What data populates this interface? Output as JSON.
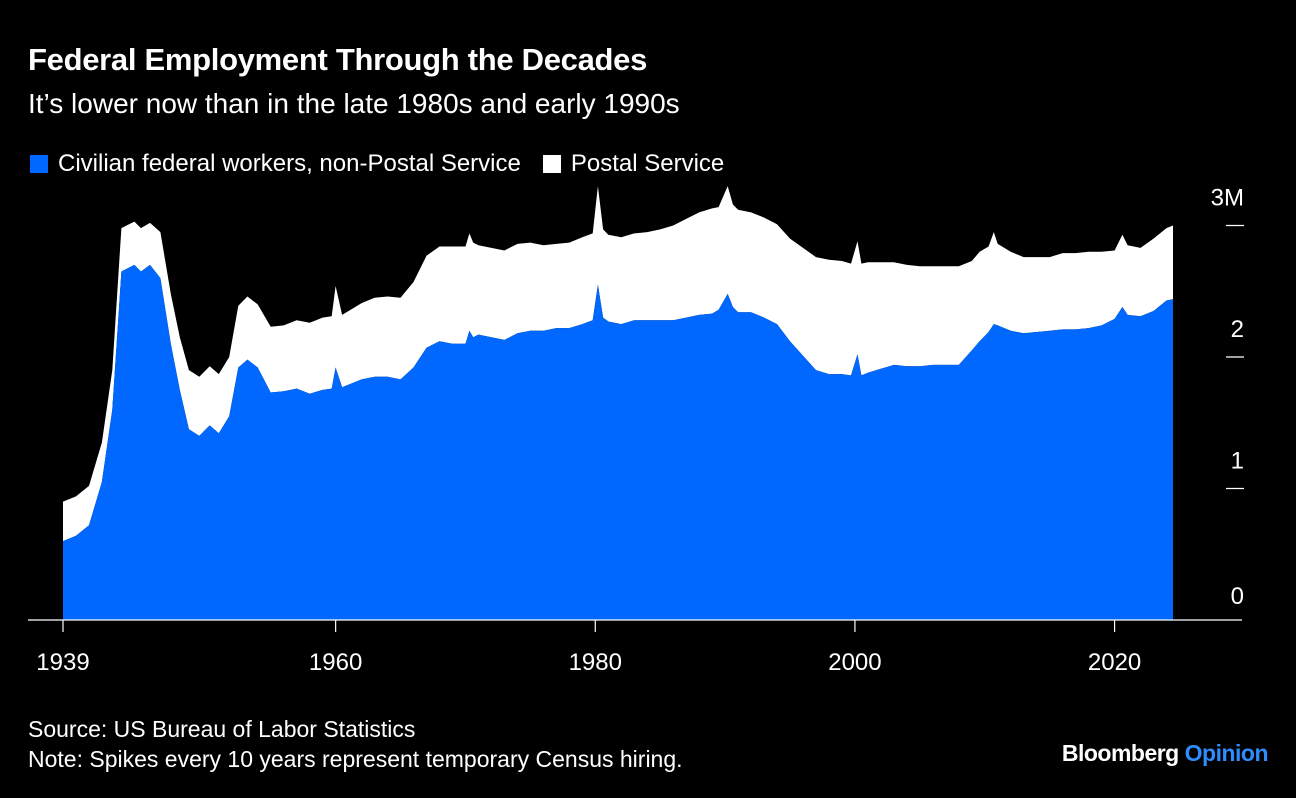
{
  "header": {
    "title": "Federal Employment Through the Decades",
    "subtitle": "It’s lower now than in the late 1980s and early 1990s"
  },
  "legend": {
    "items": [
      {
        "label": "Civilian federal workers, non-Postal Service",
        "color": "#0068ff"
      },
      {
        "label": "Postal Service",
        "color": "#ffffff"
      }
    ]
  },
  "footer": {
    "source": "Source: US Bureau of Labor Statistics",
    "note": "Note: Spikes every 10 years represent temporary Census hiring."
  },
  "brand": {
    "name": "Bloomberg",
    "section": "Opinion",
    "section_color": "#2f8cff"
  },
  "chart_data": {
    "type": "area",
    "stacked": true,
    "title": "Federal Employment Through the Decades",
    "xlabel": "",
    "ylabel": "",
    "xlim": [
      1939,
      2029
    ],
    "ylim": [
      0,
      3.3
    ],
    "x_ticks": [
      {
        "value": 1939,
        "label": "1939"
      },
      {
        "value": 1960,
        "label": "1960"
      },
      {
        "value": 1980,
        "label": "1980"
      },
      {
        "value": 2000,
        "label": "2000"
      },
      {
        "value": 2020,
        "label": "2020"
      }
    ],
    "y_ticks": [
      {
        "value": 0,
        "label": "0"
      },
      {
        "value": 1,
        "label": "1"
      },
      {
        "value": 2,
        "label": "2"
      },
      {
        "value": 3,
        "label": "3M"
      }
    ],
    "x": [
      1939,
      1940,
      1941,
      1942,
      1942.8,
      1943.5,
      1944.5,
      1945,
      1945.7,
      1946.5,
      1947.3,
      1948,
      1948.7,
      1949.5,
      1950.3,
      1951,
      1951.8,
      1952.5,
      1953.2,
      1954,
      1955,
      1956,
      1957,
      1958,
      1959,
      1959.7,
      1960,
      1960.5,
      1961,
      1962,
      1963,
      1964,
      1965,
      1966,
      1967,
      1968,
      1969,
      1970,
      1970.3,
      1970.6,
      1971,
      1972,
      1973,
      1974,
      1975,
      1976,
      1977,
      1978,
      1979,
      1979.8,
      1980.2,
      1980.6,
      1981,
      1982,
      1983,
      1984,
      1985,
      1986,
      1987,
      1988,
      1989,
      1989.5,
      1990.2,
      1990.6,
      1991,
      1992,
      1993,
      1994,
      1995,
      1996,
      1997,
      1998,
      1999,
      1999.7,
      2000.2,
      2000.5,
      2001,
      2002,
      2003,
      2004,
      2005,
      2006,
      2007,
      2008,
      2009,
      2009.6,
      2010.3,
      2010.7,
      2011,
      2012,
      2013,
      2014,
      2015,
      2016,
      2017,
      2018,
      2019,
      2020,
      2020.6,
      2021,
      2022,
      2023,
      2024,
      2024.5
    ],
    "series": [
      {
        "name": "Civilian federal workers, non-Postal Service",
        "values": [
          0.6,
          0.64,
          0.72,
          1.05,
          1.6,
          2.65,
          2.7,
          2.65,
          2.7,
          2.6,
          2.1,
          1.75,
          1.45,
          1.4,
          1.48,
          1.42,
          1.55,
          1.92,
          1.98,
          1.92,
          1.73,
          1.74,
          1.76,
          1.72,
          1.75,
          1.76,
          1.92,
          1.77,
          1.79,
          1.83,
          1.85,
          1.85,
          1.83,
          1.92,
          2.07,
          2.12,
          2.1,
          2.1,
          2.2,
          2.15,
          2.17,
          2.15,
          2.13,
          2.18,
          2.2,
          2.2,
          2.22,
          2.22,
          2.25,
          2.28,
          2.55,
          2.3,
          2.27,
          2.25,
          2.28,
          2.28,
          2.28,
          2.28,
          2.3,
          2.32,
          2.33,
          2.36,
          2.48,
          2.38,
          2.34,
          2.34,
          2.3,
          2.25,
          2.12,
          2.01,
          1.9,
          1.87,
          1.87,
          1.86,
          2.02,
          1.86,
          1.88,
          1.91,
          1.94,
          1.93,
          1.93,
          1.94,
          1.94,
          1.94,
          2.05,
          2.12,
          2.19,
          2.25,
          2.24,
          2.2,
          2.18,
          2.19,
          2.2,
          2.21,
          2.21,
          2.22,
          2.24,
          2.29,
          2.38,
          2.32,
          2.31,
          2.35,
          2.43,
          2.44
        ]
      },
      {
        "name": "Postal Service",
        "values": [
          0.3,
          0.3,
          0.3,
          0.3,
          0.3,
          0.33,
          0.33,
          0.33,
          0.32,
          0.35,
          0.38,
          0.4,
          0.45,
          0.45,
          0.45,
          0.45,
          0.45,
          0.47,
          0.48,
          0.48,
          0.5,
          0.5,
          0.52,
          0.54,
          0.55,
          0.55,
          0.62,
          0.55,
          0.56,
          0.58,
          0.6,
          0.61,
          0.62,
          0.65,
          0.7,
          0.72,
          0.74,
          0.74,
          0.74,
          0.72,
          0.68,
          0.68,
          0.68,
          0.68,
          0.67,
          0.65,
          0.64,
          0.65,
          0.66,
          0.66,
          0.75,
          0.67,
          0.66,
          0.66,
          0.66,
          0.67,
          0.69,
          0.72,
          0.75,
          0.78,
          0.8,
          0.78,
          0.82,
          0.78,
          0.78,
          0.76,
          0.76,
          0.76,
          0.78,
          0.82,
          0.86,
          0.87,
          0.86,
          0.85,
          0.86,
          0.85,
          0.84,
          0.81,
          0.78,
          0.77,
          0.76,
          0.75,
          0.75,
          0.75,
          0.68,
          0.68,
          0.65,
          0.7,
          0.62,
          0.6,
          0.58,
          0.57,
          0.56,
          0.58,
          0.58,
          0.58,
          0.56,
          0.52,
          0.55,
          0.53,
          0.52,
          0.55,
          0.55,
          0.56
        ]
      }
    ]
  }
}
